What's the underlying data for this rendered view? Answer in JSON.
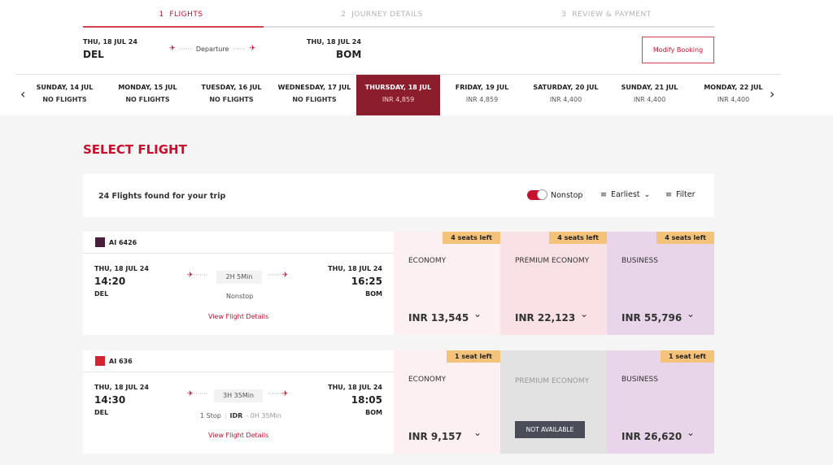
{
  "steps": [
    {
      "num": "1",
      "label": "FLIGHTS"
    },
    {
      "num": "2",
      "label": "JOURNEY DETAILS"
    },
    {
      "num": "3",
      "label": "REVIEW & PAYMENT"
    }
  ],
  "route": {
    "dep_date": "THU, 18 JUL 24",
    "dep_code": "DEL",
    "label": "Departure",
    "arr_date": "THU, 18 JUL 24",
    "arr_code": "BOM",
    "modify": "Modify Booking"
  },
  "dates": [
    {
      "day": "SUNDAY, 14 JUL",
      "price": "NO FLIGHTS"
    },
    {
      "day": "MONDAY, 15 JUL",
      "price": "NO FLIGHTS"
    },
    {
      "day": "TUESDAY, 16 JUL",
      "price": "NO FLIGHTS"
    },
    {
      "day": "WEDNESDAY, 17 JUL",
      "price": "NO FLIGHTS"
    },
    {
      "day": "THURSDAY, 18 JUL",
      "price": "INR 4,859"
    },
    {
      "day": "FRIDAY, 19 JUL",
      "price": "INR 4,859"
    },
    {
      "day": "SATURDAY, 20 JUL",
      "price": "INR 4,400"
    },
    {
      "day": "SUNDAY, 21 JUL",
      "price": "INR 4,400"
    },
    {
      "day": "MONDAY, 22 JUL",
      "price": "INR 4,400"
    }
  ],
  "page_title": "SELECT FLIGHT",
  "results": {
    "count_text": "24 Flights found for your trip",
    "nonstop": "Nonstop",
    "sort": "Earliest",
    "filter": "Filter"
  },
  "flights": [
    {
      "number": "AI 6426",
      "dep_date": "THU, 18 JUL 24",
      "dep_time": "14:20",
      "dep_code": "DEL",
      "arr_date": "THU, 18 JUL 24",
      "arr_time": "16:25",
      "arr_code": "BOM",
      "duration": "2H 5Min",
      "stops": "Nonstop",
      "details": "View Flight Details",
      "fares": [
        {
          "cls": "ECONOMY",
          "price": "INR 13,545",
          "seats": "4 seats left"
        },
        {
          "cls": "PREMIUM ECONOMY",
          "price": "INR 22,123",
          "seats": "4 seats left"
        },
        {
          "cls": "BUSINESS",
          "price": "INR 55,796",
          "seats": "4 seats left"
        }
      ]
    },
    {
      "number": "AI 636",
      "dep_date": "THU, 18 JUL 24",
      "dep_time": "14:30",
      "dep_code": "DEL",
      "arr_date": "THU, 18 JUL 24",
      "arr_time": "18:05",
      "arr_code": "BOM",
      "duration": "3H 35Min",
      "stops": "1 Stop",
      "via": "IDR",
      "layover": "- 0H 35Min",
      "details": "View Flight Details",
      "fares": [
        {
          "cls": "ECONOMY",
          "price": "INR 9,157",
          "seats": "1 seat left"
        },
        {
          "cls": "PREMIUM ECONOMY",
          "status": "NOT AVAILABLE"
        },
        {
          "cls": "BUSINESS",
          "price": "INR 26,620",
          "seats": "1 seat left"
        }
      ]
    }
  ],
  "colors": {
    "accent": "#c8102e",
    "selected_date": "#8b1d2c",
    "economy": "#fcf0f3",
    "premium": "#fae1e6",
    "business": "#e8d5e9",
    "unavailable": "#e2e2e2",
    "seats_badge": "#f5c27a"
  }
}
